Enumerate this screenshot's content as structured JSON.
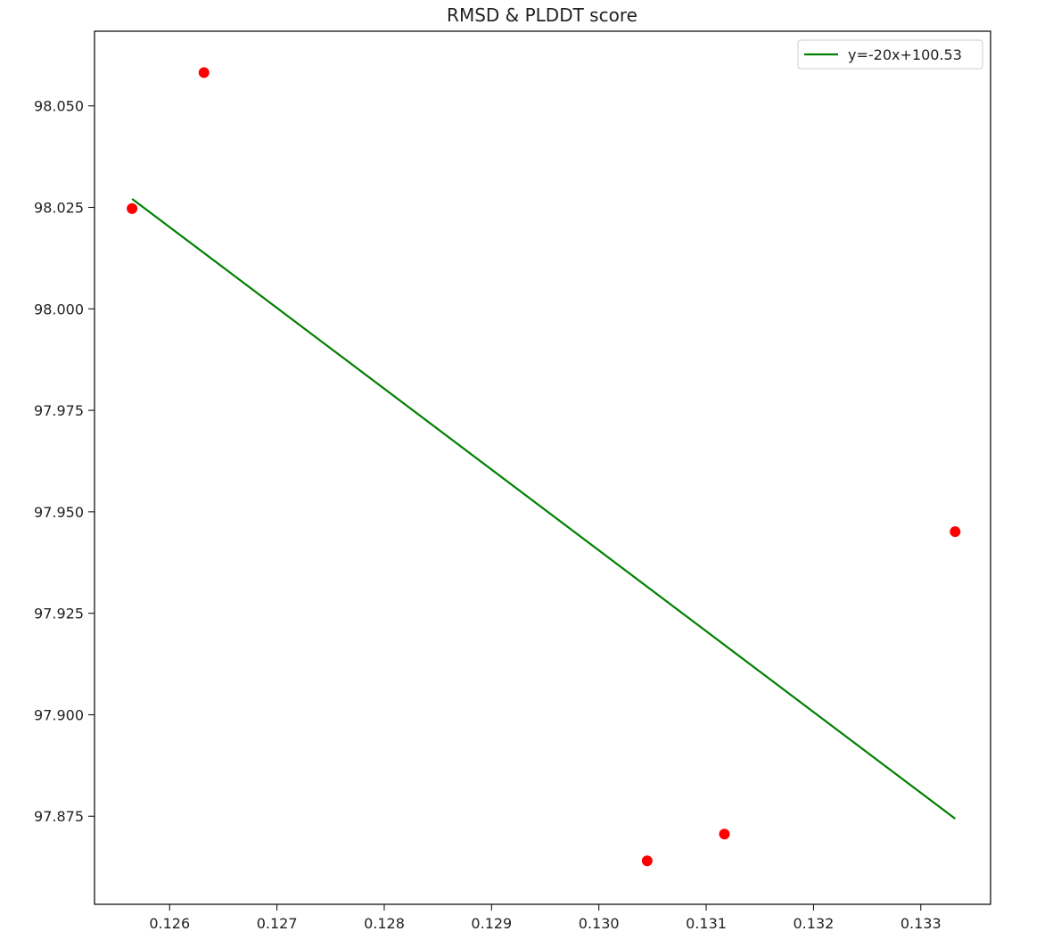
{
  "chart_data": {
    "type": "scatter",
    "title": "RMSD & PLDDT score",
    "xlabel": "",
    "ylabel": "",
    "xlim": [
      0.1253,
      0.13365
    ],
    "ylim": [
      97.8533,
      98.0684
    ],
    "x_ticks": [
      0.126,
      0.127,
      0.128,
      0.129,
      0.13,
      0.131,
      0.132,
      0.133
    ],
    "x_tick_labels": [
      "0.126",
      "0.127",
      "0.128",
      "0.129",
      "0.130",
      "0.131",
      "0.132",
      "0.133"
    ],
    "y_ticks": [
      97.875,
      97.9,
      97.925,
      97.95,
      97.975,
      98.0,
      98.025,
      98.05
    ],
    "y_tick_labels": [
      "97.875",
      "97.900",
      "97.925",
      "97.950",
      "97.975",
      "98.000",
      "98.025",
      "98.050"
    ],
    "grid": false,
    "legend_position": "top-right",
    "series": [
      {
        "kind": "scatter",
        "color": "#ff0000",
        "points": [
          {
            "x": 0.12565,
            "y": 98.0247
          },
          {
            "x": 0.12632,
            "y": 98.0582
          },
          {
            "x": 0.13045,
            "y": 97.864
          },
          {
            "x": 0.13117,
            "y": 97.8706
          },
          {
            "x": 0.13332,
            "y": 97.9451
          }
        ]
      },
      {
        "kind": "line",
        "name": "y=-20x+100.53",
        "color": "#008000",
        "points": [
          {
            "x": 0.12565,
            "y": 98.0271
          },
          {
            "x": 0.13332,
            "y": 97.8744
          }
        ]
      }
    ]
  }
}
